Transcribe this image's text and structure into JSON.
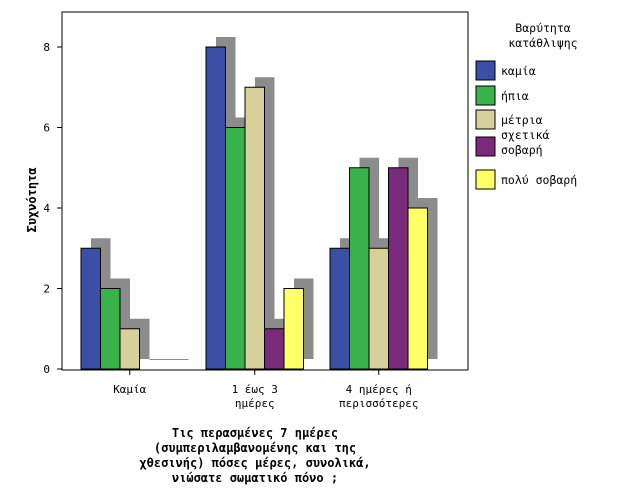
{
  "chart_data": {
    "type": "bar",
    "categories": [
      [
        "Καμία"
      ],
      [
        "1 έως 3",
        "ημέρες"
      ],
      [
        "4 ημέρες ή",
        "περισσότερες"
      ]
    ],
    "series": [
      {
        "name": "καμία",
        "color": "#3a4fa5",
        "values": [
          3,
          8,
          3
        ]
      },
      {
        "name": "ήπια",
        "color": "#3ab24a",
        "values": [
          2,
          6,
          5
        ]
      },
      {
        "name": "μέτρια",
        "color": "#d6d09a",
        "values": [
          1,
          7,
          3
        ]
      },
      {
        "name": "σχετικά σοβαρή",
        "color": "#7a2a7a",
        "values": [
          0,
          1,
          5
        ]
      },
      {
        "name": "πολύ σοβαρή",
        "color": "#ffff66",
        "values": [
          0,
          2,
          4
        ]
      }
    ],
    "ylabel": "Συχνότητα",
    "xlabel": [
      "Τις περασμένες 7 ημέρες",
      "(συμπεριλαμβανομένης και της",
      "χθεσινής) πόσες μέρες, συνολικά,",
      "νιώσατε σωματικό πόνο ;"
    ],
    "legend_title": [
      "Βαρύτητα",
      "κατάθλιψης"
    ],
    "ylim": [
      0,
      8
    ],
    "yticks": [
      0,
      2,
      4,
      6,
      8
    ],
    "shadow_color": "#8c8c8c",
    "legend_position": "right"
  }
}
